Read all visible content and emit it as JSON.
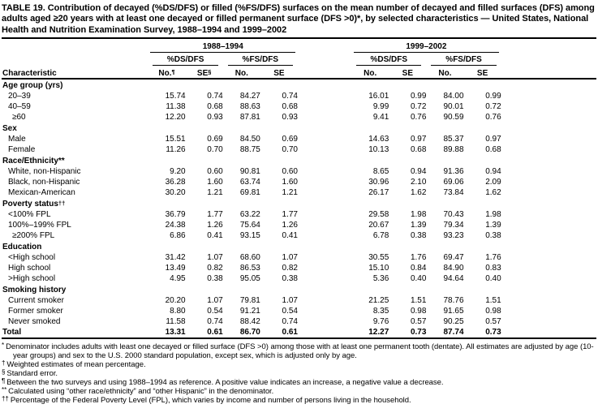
{
  "table": {
    "title": "TABLE 19. Contribution of decayed (%DS/DFS) or filled (%FS/DFS) surfaces on the mean number of decayed and filled surfaces (DFS) among adults aged ≥20 years with at least one decayed or filled permanent surface (DFS >0)*, by selected characteristics — United States, National Health and Nutrition Examination Survey, 1988–1994 and 1999–2002",
    "characteristic_header": "Characteristic",
    "col_groups": [
      {
        "label": "1988–1994"
      },
      {
        "label": "1999–2002"
      }
    ],
    "sub_groups": [
      "%DS/DFS",
      "%FS/DFS",
      "%DS/DFS",
      "%FS/DFS"
    ],
    "stat_headers": [
      {
        "label": "No.",
        "sup": "¶"
      },
      {
        "label": "SE",
        "sup": "§"
      },
      {
        "label": "No.",
        "sup": ""
      },
      {
        "label": "SE",
        "sup": ""
      },
      {
        "label": "No.",
        "sup": ""
      },
      {
        "label": "SE",
        "sup": ""
      },
      {
        "label": "No.",
        "sup": ""
      },
      {
        "label": "SE",
        "sup": ""
      }
    ],
    "rows": [
      {
        "type": "section",
        "label": "Age group (yrs)",
        "sup": ""
      },
      {
        "type": "item",
        "label": "20–39",
        "indent": 1,
        "values": [
          "15.74",
          "0.74",
          "84.27",
          "0.74",
          "16.01",
          "0.99",
          "84.00",
          "0.99"
        ]
      },
      {
        "type": "item",
        "label": "40–59",
        "indent": 1,
        "values": [
          "11.38",
          "0.68",
          "88.63",
          "0.68",
          "9.99",
          "0.72",
          "90.01",
          "0.72"
        ]
      },
      {
        "type": "item",
        "label": "≥60",
        "indent": 2,
        "values": [
          "12.20",
          "0.93",
          "87.81",
          "0.93",
          "9.41",
          "0.76",
          "90.59",
          "0.76"
        ]
      },
      {
        "type": "section",
        "label": "Sex",
        "sup": ""
      },
      {
        "type": "item",
        "label": "Male",
        "indent": 1,
        "values": [
          "15.51",
          "0.69",
          "84.50",
          "0.69",
          "14.63",
          "0.97",
          "85.37",
          "0.97"
        ]
      },
      {
        "type": "item",
        "label": "Female",
        "indent": 1,
        "values": [
          "11.26",
          "0.70",
          "88.75",
          "0.70",
          "10.13",
          "0.68",
          "89.88",
          "0.68"
        ]
      },
      {
        "type": "section",
        "label": "Race/Ethnicity**",
        "sup": ""
      },
      {
        "type": "item",
        "label": "White, non-Hispanic",
        "indent": 1,
        "values": [
          "9.20",
          "0.60",
          "90.81",
          "0.60",
          "8.65",
          "0.94",
          "91.36",
          "0.94"
        ]
      },
      {
        "type": "item",
        "label": "Black, non-Hispanic",
        "indent": 1,
        "values": [
          "36.28",
          "1.60",
          "63.74",
          "1.60",
          "30.96",
          "2.10",
          "69.06",
          "2.09"
        ]
      },
      {
        "type": "item",
        "label": "Mexican-American",
        "indent": 1,
        "values": [
          "30.20",
          "1.21",
          "69.81",
          "1.21",
          "26.17",
          "1.62",
          "73.84",
          "1.62"
        ]
      },
      {
        "type": "section",
        "label": "Poverty status",
        "sup": "††"
      },
      {
        "type": "item",
        "label": "<100% FPL",
        "indent": 1,
        "values": [
          "36.79",
          "1.77",
          "63.22",
          "1.77",
          "29.58",
          "1.98",
          "70.43",
          "1.98"
        ]
      },
      {
        "type": "item",
        "label": "100%–199% FPL",
        "indent": 1,
        "values": [
          "24.38",
          "1.26",
          "75.64",
          "1.26",
          "20.67",
          "1.39",
          "79.34",
          "1.39"
        ]
      },
      {
        "type": "item",
        "label": "≥200% FPL",
        "indent": 2,
        "values": [
          "6.86",
          "0.41",
          "93.15",
          "0.41",
          "6.78",
          "0.38",
          "93.23",
          "0.38"
        ]
      },
      {
        "type": "section",
        "label": "Education",
        "sup": ""
      },
      {
        "type": "item",
        "label": "<High school",
        "indent": 1,
        "values": [
          "31.42",
          "1.07",
          "68.60",
          "1.07",
          "30.55",
          "1.76",
          "69.47",
          "1.76"
        ]
      },
      {
        "type": "item",
        "label": "High school",
        "indent": 1,
        "values": [
          "13.49",
          "0.82",
          "86.53",
          "0.82",
          "15.10",
          "0.84",
          "84.90",
          "0.83"
        ]
      },
      {
        "type": "item",
        "label": ">High school",
        "indent": 1,
        "values": [
          "4.95",
          "0.38",
          "95.05",
          "0.38",
          "5.36",
          "0.40",
          "94.64",
          "0.40"
        ]
      },
      {
        "type": "section",
        "label": "Smoking history",
        "sup": ""
      },
      {
        "type": "item",
        "label": "Current smoker",
        "indent": 1,
        "values": [
          "20.20",
          "1.07",
          "79.81",
          "1.07",
          "21.25",
          "1.51",
          "78.76",
          "1.51"
        ]
      },
      {
        "type": "item",
        "label": "Former smoker",
        "indent": 1,
        "values": [
          "8.80",
          "0.54",
          "91.21",
          "0.54",
          "8.35",
          "0.98",
          "91.65",
          "0.98"
        ]
      },
      {
        "type": "item",
        "label": "Never smoked",
        "indent": 1,
        "values": [
          "11.58",
          "0.74",
          "88.42",
          "0.74",
          "9.76",
          "0.57",
          "90.25",
          "0.57"
        ]
      },
      {
        "type": "total",
        "label": "Total",
        "sup": "",
        "values": [
          "13.31",
          "0.61",
          "86.70",
          "0.61",
          "12.27",
          "0.73",
          "87.74",
          "0.73"
        ]
      }
    ],
    "footnotes": [
      {
        "sym": "*",
        "text": "Denominator includes adults with least one decayed or filled surface (DFS >0) among those with at least one permanent tooth (dentate).  All estimates are adjusted by age (10-year groups) and sex to the U.S. 2000 standard population, except sex, which is adjusted only by age."
      },
      {
        "sym": "†",
        "text": "Weighted estimates of mean percentage."
      },
      {
        "sym": "§",
        "text": "Standard error."
      },
      {
        "sym": "¶",
        "text": "Between the two surveys and using 1988–1994 as reference. A positive value indicates an increase, a negative value a decrease."
      },
      {
        "sym": "**",
        "text": "Calculated using “other race/ethnicity” and “other Hispanic” in the denominator."
      },
      {
        "sym": "††",
        "text": "Percentage of the Federal Poverty Level (FPL), which varies by income and number of persons living in the household."
      }
    ]
  }
}
